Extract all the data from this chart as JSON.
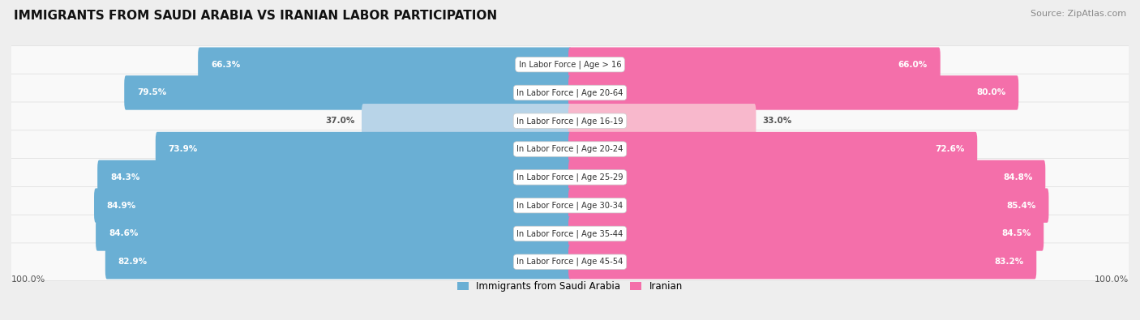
{
  "title": "IMMIGRANTS FROM SAUDI ARABIA VS IRANIAN LABOR PARTICIPATION",
  "source": "Source: ZipAtlas.com",
  "categories": [
    "In Labor Force | Age > 16",
    "In Labor Force | Age 20-64",
    "In Labor Force | Age 16-19",
    "In Labor Force | Age 20-24",
    "In Labor Force | Age 25-29",
    "In Labor Force | Age 30-34",
    "In Labor Force | Age 35-44",
    "In Labor Force | Age 45-54"
  ],
  "saudi_values": [
    66.3,
    79.5,
    37.0,
    73.9,
    84.3,
    84.9,
    84.6,
    82.9
  ],
  "iranian_values": [
    66.0,
    80.0,
    33.0,
    72.6,
    84.8,
    85.4,
    84.5,
    83.2
  ],
  "saudi_color": "#6aafd4",
  "saudi_light_color": "#b8d4e8",
  "iranian_color": "#f46faa",
  "iranian_light_color": "#f8b8cc",
  "bg_color": "#eeeeee",
  "row_bg_color": "#f7f7f7",
  "label1": "Immigrants from Saudi Arabia",
  "label2": "Iranian",
  "max_val": 100.0,
  "title_fontsize": 11,
  "source_fontsize": 8,
  "bar_height": 0.62
}
